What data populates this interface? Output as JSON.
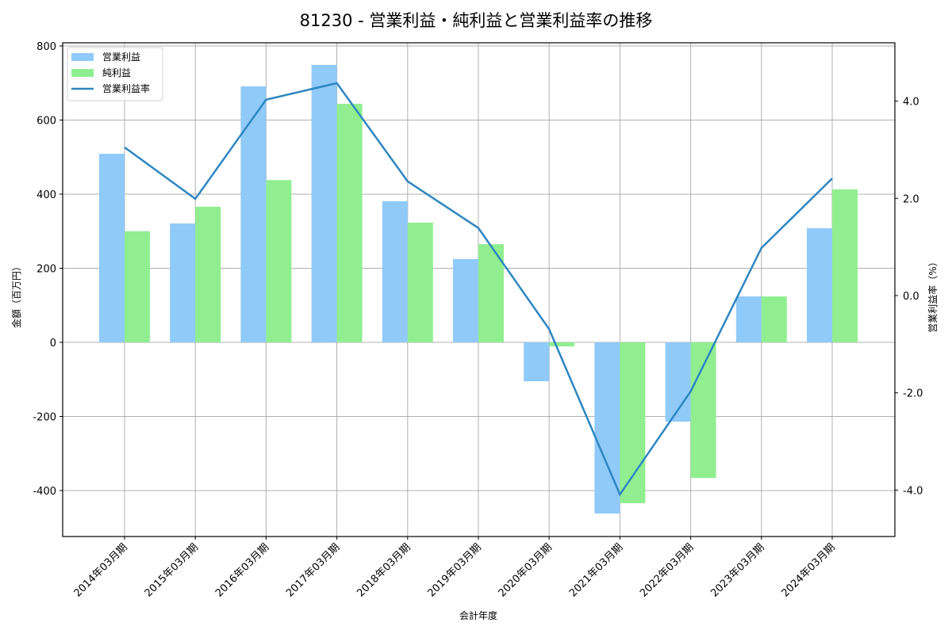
{
  "chart_data": {
    "type": "bar",
    "title": "81230 - 営業利益・純利益と営業利益率の推移",
    "xlabel": "会計年度",
    "ylabel": "金額（百万円）",
    "y2label": "営業利益率（%）",
    "ylim": [
      -530,
      810
    ],
    "y2lim": [
      -4.95,
      5.2
    ],
    "yticks": [
      -400,
      -200,
      0,
      200,
      400,
      600,
      800
    ],
    "y2ticks": [
      -4.0,
      -2.0,
      0.0,
      2.0,
      4.0
    ],
    "grid": true,
    "legend_position": "upper left",
    "categories": [
      "2014年03月期",
      "2015年03月期",
      "2016年03月期",
      "2017年03月期",
      "2018年03月期",
      "2019年03月期",
      "2020年03月期",
      "2021年03月期",
      "2022年03月期",
      "2023年03月期",
      "2024年03月期"
    ],
    "series": [
      {
        "name": "営業利益",
        "type": "bar",
        "axis": "left",
        "color": "#90CAF9",
        "values": [
          509,
          321,
          691,
          749,
          381,
          225,
          -105,
          -462,
          -214,
          124,
          308
        ]
      },
      {
        "name": "純利益",
        "type": "bar",
        "axis": "left",
        "color": "#90EE90",
        "values": [
          300,
          366,
          438,
          644,
          323,
          265,
          -11,
          -434,
          -366,
          124,
          413
        ]
      },
      {
        "name": "営業利益率",
        "type": "line",
        "axis": "right",
        "color": "#2E86C1",
        "values": [
          3.05,
          1.99,
          4.03,
          4.37,
          2.35,
          1.39,
          -0.69,
          -4.09,
          -1.97,
          0.98,
          2.41
        ]
      }
    ]
  }
}
